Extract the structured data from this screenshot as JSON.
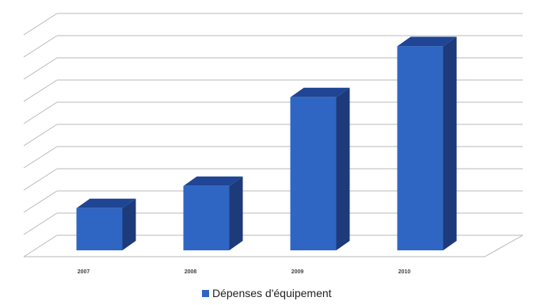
{
  "chart_data": {
    "type": "bar",
    "categories": [
      "2007",
      "2008",
      "2009",
      "2010"
    ],
    "series": [
      {
        "name": "Dépenses d'équipement",
        "values": [
          1.9,
          2.9,
          6.9,
          9.2
        ]
      }
    ],
    "ylim": [
      0,
      10
    ],
    "grid": true,
    "legend_position": "bottom",
    "colors": {
      "front": "#2f66c4",
      "top": "#1f4594",
      "side": "#1d3a7a",
      "grid": "#b8b8b8"
    }
  }
}
